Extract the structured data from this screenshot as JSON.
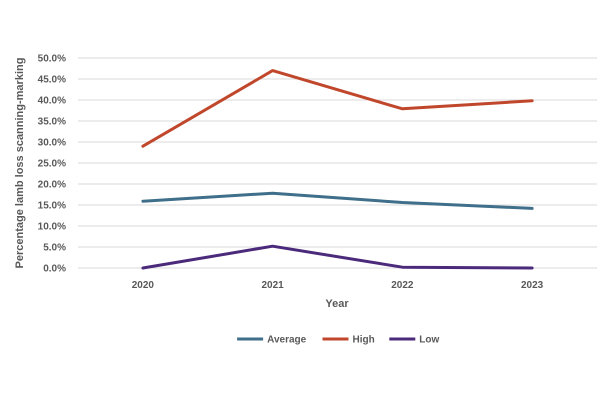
{
  "chart_data": {
    "type": "line",
    "categories": [
      "2020",
      "2021",
      "2022",
      "2023"
    ],
    "series": [
      {
        "name": "Average",
        "color": "#3f6f8a",
        "values": [
          15.9,
          17.8,
          15.6,
          14.2
        ]
      },
      {
        "name": "High",
        "color": "#c0472b",
        "values": [
          29.0,
          47.0,
          37.9,
          39.8
        ]
      },
      {
        "name": "Low",
        "color": "#4b2a7b",
        "values": [
          0.0,
          5.2,
          0.2,
          0.0
        ]
      }
    ],
    "xlabel": "Year",
    "ylabel": "Percentage  lamb loss scanning-marking",
    "ylim": [
      0,
      50
    ],
    "yticks": [
      "0.0%",
      "5.0%",
      "10.0%",
      "15.0%",
      "20.0%",
      "25.0%",
      "30.0%",
      "35.0%",
      "40.0%",
      "45.0%",
      "50.0%"
    ],
    "grid": true,
    "legend": "bottom"
  }
}
